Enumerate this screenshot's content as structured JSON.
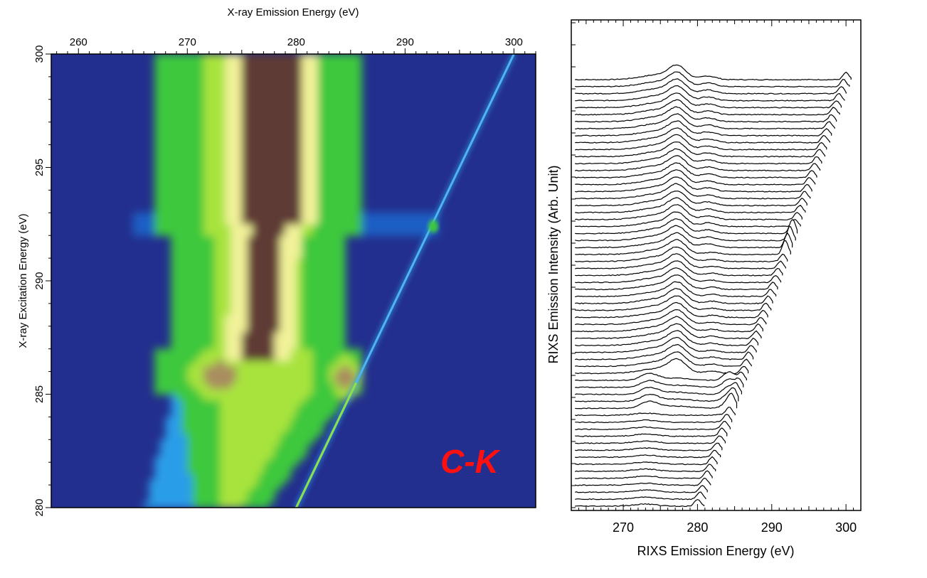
{
  "chart_data": [
    {
      "type": "heatmap",
      "xlabel": "X-ray Emission Energy (eV)",
      "ylabel": "X-ray Excitation Energy (eV)",
      "xlim": [
        257.5,
        302
      ],
      "ylim": [
        280,
        300
      ],
      "x_ticks": [
        260,
        270,
        280,
        290,
        300
      ],
      "y_ticks": [
        280,
        285,
        290,
        295,
        300
      ],
      "x_tick_labels": [
        "260",
        "270",
        "280",
        "290",
        "300"
      ],
      "y_tick_labels": [
        "280",
        "285",
        "290",
        "295",
        "300"
      ],
      "colormap": [
        "#232f8e",
        "#1e5fc4",
        "#2a9de8",
        "#3cc83c",
        "#a8e33c",
        "#f2f29a",
        "#a98d5e",
        "#5e3a36"
      ],
      "annotations": [
        {
          "text": "C-K",
          "color": "#ff1010"
        }
      ],
      "features": [
        {
          "name": "elastic",
          "from": [
            280,
            280
          ],
          "to": [
            300,
            300
          ]
        },
        {
          "name": "main-band",
          "x_center": 277.5,
          "excitation_range": [
            286.5,
            300
          ]
        },
        {
          "name": "resonance-left",
          "x": 273,
          "y": 285.8
        },
        {
          "name": "resonance-right",
          "x": 284.5,
          "y": 285.8
        },
        {
          "name": "resonance-elastic",
          "x": 292.6,
          "y": 292.4
        }
      ]
    },
    {
      "type": "line",
      "xlabel": "RIXS Emission Energy (eV)",
      "ylabel": "RIXS Emission Intensity (Arb. Unit)",
      "xlim": [
        263,
        302
      ],
      "x_ticks": [
        270,
        280,
        290,
        300
      ],
      "x_tick_labels": [
        "270",
        "280",
        "290",
        "300"
      ],
      "grid": false,
      "legend": "none",
      "series_count": 62,
      "excitation_range": [
        280,
        300
      ]
    }
  ]
}
